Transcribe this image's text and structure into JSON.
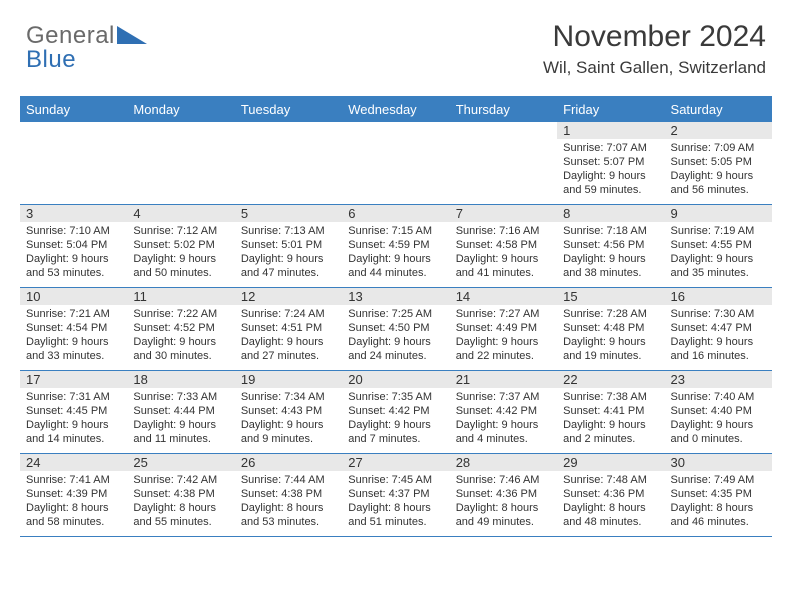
{
  "logo": {
    "general": "General",
    "blue": "Blue"
  },
  "title": "November 2024",
  "location": "Wil, Saint Gallen, Switzerland",
  "colors": {
    "header_bg": "#3a7fc0",
    "header_text": "#ffffff",
    "cell_label_bg": "#e8e8e8",
    "text": "#333333",
    "logo_gray": "#6a6a6a",
    "logo_blue": "#2f6fb3"
  },
  "dayNames": [
    "Sunday",
    "Monday",
    "Tuesday",
    "Wednesday",
    "Thursday",
    "Friday",
    "Saturday"
  ],
  "weeks": [
    [
      {
        "empty": true
      },
      {
        "empty": true
      },
      {
        "empty": true
      },
      {
        "empty": true
      },
      {
        "empty": true
      },
      {
        "day": "1",
        "sunrise": "Sunrise: 7:07 AM",
        "sunset": "Sunset: 5:07 PM",
        "daylight": "Daylight: 9 hours and 59 minutes."
      },
      {
        "day": "2",
        "sunrise": "Sunrise: 7:09 AM",
        "sunset": "Sunset: 5:05 PM",
        "daylight": "Daylight: 9 hours and 56 minutes."
      }
    ],
    [
      {
        "day": "3",
        "sunrise": "Sunrise: 7:10 AM",
        "sunset": "Sunset: 5:04 PM",
        "daylight": "Daylight: 9 hours and 53 minutes."
      },
      {
        "day": "4",
        "sunrise": "Sunrise: 7:12 AM",
        "sunset": "Sunset: 5:02 PM",
        "daylight": "Daylight: 9 hours and 50 minutes."
      },
      {
        "day": "5",
        "sunrise": "Sunrise: 7:13 AM",
        "sunset": "Sunset: 5:01 PM",
        "daylight": "Daylight: 9 hours and 47 minutes."
      },
      {
        "day": "6",
        "sunrise": "Sunrise: 7:15 AM",
        "sunset": "Sunset: 4:59 PM",
        "daylight": "Daylight: 9 hours and 44 minutes."
      },
      {
        "day": "7",
        "sunrise": "Sunrise: 7:16 AM",
        "sunset": "Sunset: 4:58 PM",
        "daylight": "Daylight: 9 hours and 41 minutes."
      },
      {
        "day": "8",
        "sunrise": "Sunrise: 7:18 AM",
        "sunset": "Sunset: 4:56 PM",
        "daylight": "Daylight: 9 hours and 38 minutes."
      },
      {
        "day": "9",
        "sunrise": "Sunrise: 7:19 AM",
        "sunset": "Sunset: 4:55 PM",
        "daylight": "Daylight: 9 hours and 35 minutes."
      }
    ],
    [
      {
        "day": "10",
        "sunrise": "Sunrise: 7:21 AM",
        "sunset": "Sunset: 4:54 PM",
        "daylight": "Daylight: 9 hours and 33 minutes."
      },
      {
        "day": "11",
        "sunrise": "Sunrise: 7:22 AM",
        "sunset": "Sunset: 4:52 PM",
        "daylight": "Daylight: 9 hours and 30 minutes."
      },
      {
        "day": "12",
        "sunrise": "Sunrise: 7:24 AM",
        "sunset": "Sunset: 4:51 PM",
        "daylight": "Daylight: 9 hours and 27 minutes."
      },
      {
        "day": "13",
        "sunrise": "Sunrise: 7:25 AM",
        "sunset": "Sunset: 4:50 PM",
        "daylight": "Daylight: 9 hours and 24 minutes."
      },
      {
        "day": "14",
        "sunrise": "Sunrise: 7:27 AM",
        "sunset": "Sunset: 4:49 PM",
        "daylight": "Daylight: 9 hours and 22 minutes."
      },
      {
        "day": "15",
        "sunrise": "Sunrise: 7:28 AM",
        "sunset": "Sunset: 4:48 PM",
        "daylight": "Daylight: 9 hours and 19 minutes."
      },
      {
        "day": "16",
        "sunrise": "Sunrise: 7:30 AM",
        "sunset": "Sunset: 4:47 PM",
        "daylight": "Daylight: 9 hours and 16 minutes."
      }
    ],
    [
      {
        "day": "17",
        "sunrise": "Sunrise: 7:31 AM",
        "sunset": "Sunset: 4:45 PM",
        "daylight": "Daylight: 9 hours and 14 minutes."
      },
      {
        "day": "18",
        "sunrise": "Sunrise: 7:33 AM",
        "sunset": "Sunset: 4:44 PM",
        "daylight": "Daylight: 9 hours and 11 minutes."
      },
      {
        "day": "19",
        "sunrise": "Sunrise: 7:34 AM",
        "sunset": "Sunset: 4:43 PM",
        "daylight": "Daylight: 9 hours and 9 minutes."
      },
      {
        "day": "20",
        "sunrise": "Sunrise: 7:35 AM",
        "sunset": "Sunset: 4:42 PM",
        "daylight": "Daylight: 9 hours and 7 minutes."
      },
      {
        "day": "21",
        "sunrise": "Sunrise: 7:37 AM",
        "sunset": "Sunset: 4:42 PM",
        "daylight": "Daylight: 9 hours and 4 minutes."
      },
      {
        "day": "22",
        "sunrise": "Sunrise: 7:38 AM",
        "sunset": "Sunset: 4:41 PM",
        "daylight": "Daylight: 9 hours and 2 minutes."
      },
      {
        "day": "23",
        "sunrise": "Sunrise: 7:40 AM",
        "sunset": "Sunset: 4:40 PM",
        "daylight": "Daylight: 9 hours and 0 minutes."
      }
    ],
    [
      {
        "day": "24",
        "sunrise": "Sunrise: 7:41 AM",
        "sunset": "Sunset: 4:39 PM",
        "daylight": "Daylight: 8 hours and 58 minutes."
      },
      {
        "day": "25",
        "sunrise": "Sunrise: 7:42 AM",
        "sunset": "Sunset: 4:38 PM",
        "daylight": "Daylight: 8 hours and 55 minutes."
      },
      {
        "day": "26",
        "sunrise": "Sunrise: 7:44 AM",
        "sunset": "Sunset: 4:38 PM",
        "daylight": "Daylight: 8 hours and 53 minutes."
      },
      {
        "day": "27",
        "sunrise": "Sunrise: 7:45 AM",
        "sunset": "Sunset: 4:37 PM",
        "daylight": "Daylight: 8 hours and 51 minutes."
      },
      {
        "day": "28",
        "sunrise": "Sunrise: 7:46 AM",
        "sunset": "Sunset: 4:36 PM",
        "daylight": "Daylight: 8 hours and 49 minutes."
      },
      {
        "day": "29",
        "sunrise": "Sunrise: 7:48 AM",
        "sunset": "Sunset: 4:36 PM",
        "daylight": "Daylight: 8 hours and 48 minutes."
      },
      {
        "day": "30",
        "sunrise": "Sunrise: 7:49 AM",
        "sunset": "Sunset: 4:35 PM",
        "daylight": "Daylight: 8 hours and 46 minutes."
      }
    ]
  ]
}
